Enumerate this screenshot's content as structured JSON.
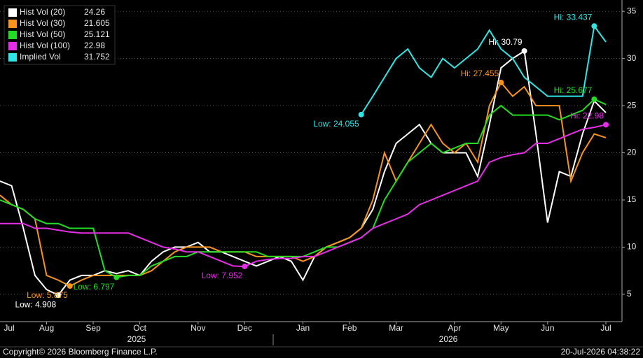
{
  "chart_data": {
    "type": "line",
    "categories": [
      null,
      null,
      null,
      null,
      "Aug",
      null,
      null,
      null,
      "Sep",
      null,
      null,
      null,
      "Oct",
      null,
      null,
      null,
      null,
      "Nov",
      null,
      null,
      null,
      "Dec",
      null,
      null,
      null,
      null,
      "Jan",
      null,
      null,
      null,
      "Feb",
      null,
      null,
      null,
      "Mar",
      null,
      null,
      null,
      null,
      "Apr",
      null,
      null,
      null,
      "May",
      null,
      null,
      null,
      "Jun",
      null,
      null,
      null,
      null,
      "Jul"
    ],
    "leading_category": "Jul",
    "year_labels": [
      "2025",
      "2026"
    ],
    "series": [
      {
        "name": "Hist Vol (20)",
        "color": "#ffffff",
        "hi_label": "Hi: 30.79",
        "low_label": "Low: 4.908",
        "values": [
          17,
          16.5,
          12,
          7,
          5.5,
          4.908,
          6.5,
          7,
          7,
          7.5,
          7.2,
          7.5,
          7,
          8.5,
          9.5,
          10,
          10,
          10.5,
          9.5,
          9.5,
          9,
          8.5,
          8,
          8.5,
          9,
          8.5,
          6.5,
          9,
          10,
          10.5,
          11,
          12,
          14,
          18,
          21,
          22,
          23,
          21,
          20,
          20,
          20,
          17.5,
          23,
          29,
          30,
          30.79,
          22,
          12.6,
          18,
          17.5,
          22,
          25.5,
          24.26
        ]
      },
      {
        "name": "Hist Vol (30)",
        "color": "#f7941d",
        "hi_label": "Hi: 27.455",
        "low_label": "Low: 5.875",
        "values": [
          15.5,
          14.5,
          14,
          13,
          7,
          6.5,
          5.875,
          6.5,
          7,
          7,
          7,
          7,
          7,
          7.5,
          8.5,
          9.5,
          10,
          10,
          10,
          9.5,
          9.5,
          9.5,
          9,
          9,
          9,
          9,
          8.5,
          9,
          10,
          10.5,
          11,
          12,
          15,
          20,
          17,
          19,
          21,
          23,
          21,
          20,
          21,
          19,
          25,
          27.455,
          26,
          27,
          25,
          25,
          25,
          17,
          20,
          22,
          21.605
        ]
      },
      {
        "name": "Hist Vol (50)",
        "color": "#22dd22",
        "hi_label": "Hi: 25.677",
        "low_label": "Low: 6.797",
        "values": [
          15,
          14.5,
          14,
          13,
          12.5,
          12.5,
          12,
          12,
          12,
          7.5,
          6.797,
          7,
          7,
          8,
          8.5,
          9,
          9,
          9.5,
          9.5,
          9.5,
          9.5,
          9.5,
          9.5,
          9,
          9,
          9,
          9,
          9.5,
          10,
          10,
          10.5,
          11,
          12,
          15,
          17,
          19,
          20,
          21,
          20,
          20.5,
          21,
          21,
          24,
          25,
          24,
          24,
          24,
          24,
          23.5,
          24,
          24.5,
          25.677,
          25.121
        ]
      },
      {
        "name": "Hist Vol (100)",
        "color": "#e62ee6",
        "hi_label": "Hi: 22.98",
        "low_label": "Low: 7.952",
        "values": [
          12.5,
          12.5,
          12.5,
          12,
          12,
          11.8,
          11.6,
          11.5,
          11.5,
          11.5,
          11.5,
          11.5,
          11,
          10.5,
          10,
          9.8,
          9.5,
          9.5,
          9,
          8.5,
          8,
          7.952,
          8.5,
          8.7,
          8.8,
          8.8,
          9,
          9,
          9.5,
          10,
          10.5,
          11,
          12,
          12.5,
          13,
          13.5,
          14.5,
          15,
          15.5,
          16,
          16.5,
          17,
          19,
          19.5,
          19.8,
          20,
          21,
          21,
          21.5,
          22,
          22.5,
          22.7,
          22.98
        ]
      },
      {
        "name": "Implied Vol",
        "color": "#2ee6e6",
        "hi_label": "Hi: 33.437",
        "low_label": "Low: 24.055",
        "values": [
          null,
          null,
          null,
          null,
          null,
          null,
          null,
          null,
          null,
          null,
          null,
          null,
          null,
          null,
          null,
          null,
          null,
          null,
          null,
          null,
          null,
          null,
          null,
          null,
          null,
          null,
          null,
          null,
          null,
          null,
          null,
          24.055,
          26,
          28,
          30,
          31,
          29,
          28,
          30,
          29,
          30,
          31,
          33,
          31,
          30,
          28,
          27,
          26,
          26,
          26,
          26,
          33.437,
          31.752
        ]
      }
    ],
    "ylim": [
      2.1,
      36.2
    ],
    "yticks": [
      5,
      10,
      15,
      20,
      25,
      30,
      35
    ],
    "grid": true,
    "legend": "top-left",
    "copyright": "Copyright© 2026 Bloomberg Finance L.P.",
    "timestamp": "20-Jul-2026 04:38:22"
  }
}
